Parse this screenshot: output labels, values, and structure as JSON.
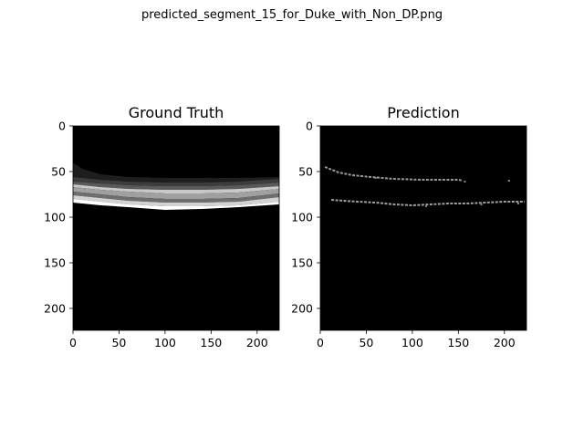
{
  "figure": {
    "suptitle": "predicted_segment_15_for_Duke_with_Non_DP.png"
  },
  "chart_data": [
    {
      "type": "heatmap",
      "title": "Ground Truth",
      "xlabel": "",
      "ylabel": "",
      "xlim": [
        0,
        224
      ],
      "ylim": [
        224,
        0
      ],
      "xticks": [
        0,
        50,
        100,
        150,
        200
      ],
      "yticks": [
        0,
        50,
        100,
        150,
        200
      ],
      "grid": false,
      "colormap": "gray",
      "background_color": "#000000",
      "bands": [
        {
          "shade": "#1e1e1e",
          "top": [
            [
              0,
              40
            ],
            [
              10,
              47
            ],
            [
              30,
              53
            ],
            [
              60,
              56
            ],
            [
              100,
              57
            ],
            [
              140,
              57
            ],
            [
              180,
              57
            ],
            [
              224,
              56
            ]
          ],
          "bottom": [
            [
              0,
              56
            ],
            [
              30,
              59
            ],
            [
              60,
              61
            ],
            [
              100,
              62
            ],
            [
              140,
              62
            ],
            [
              180,
              61
            ],
            [
              224,
              58
            ]
          ]
        },
        {
          "shade": "#3c3c3c",
          "top": [
            [
              0,
              56
            ],
            [
              30,
              59
            ],
            [
              60,
              61
            ],
            [
              100,
              62
            ],
            [
              140,
              62
            ],
            [
              180,
              61
            ],
            [
              224,
              58
            ]
          ],
          "bottom": [
            [
              0,
              61
            ],
            [
              30,
              63
            ],
            [
              60,
              65
            ],
            [
              100,
              66
            ],
            [
              140,
              66
            ],
            [
              180,
              65
            ],
            [
              224,
              62
            ]
          ]
        },
        {
          "shade": "#5a5a5a",
          "top": [
            [
              0,
              61
            ],
            [
              30,
              63
            ],
            [
              60,
              65
            ],
            [
              100,
              66
            ],
            [
              140,
              66
            ],
            [
              180,
              65
            ],
            [
              224,
              62
            ]
          ],
          "bottom": [
            [
              0,
              64
            ],
            [
              30,
              67
            ],
            [
              60,
              69
            ],
            [
              100,
              70
            ],
            [
              140,
              70
            ],
            [
              180,
              69
            ],
            [
              224,
              66
            ]
          ]
        },
        {
          "shade": "#c8c8c8",
          "top": [
            [
              0,
              64
            ],
            [
              30,
              67
            ],
            [
              60,
              69
            ],
            [
              100,
              70
            ],
            [
              140,
              70
            ],
            [
              180,
              69
            ],
            [
              224,
              66
            ]
          ],
          "bottom": [
            [
              0,
              67
            ],
            [
              30,
              70
            ],
            [
              60,
              72
            ],
            [
              100,
              74
            ],
            [
              140,
              74
            ],
            [
              180,
              73
            ],
            [
              224,
              69
            ]
          ]
        },
        {
          "shade": "#a0a0a0",
          "top": [
            [
              0,
              67
            ],
            [
              30,
              70
            ],
            [
              60,
              72
            ],
            [
              100,
              74
            ],
            [
              140,
              74
            ],
            [
              180,
              73
            ],
            [
              224,
              69
            ]
          ],
          "bottom": [
            [
              0,
              72
            ],
            [
              30,
              75
            ],
            [
              60,
              78
            ],
            [
              100,
              80
            ],
            [
              140,
              80
            ],
            [
              180,
              79
            ],
            [
              224,
              74
            ]
          ]
        },
        {
          "shade": "#6e6e6e",
          "top": [
            [
              0,
              72
            ],
            [
              30,
              75
            ],
            [
              60,
              78
            ],
            [
              100,
              80
            ],
            [
              140,
              80
            ],
            [
              180,
              79
            ],
            [
              224,
              74
            ]
          ],
          "bottom": [
            [
              0,
              76
            ],
            [
              30,
              79
            ],
            [
              60,
              82
            ],
            [
              100,
              84
            ],
            [
              140,
              84
            ],
            [
              180,
              83
            ],
            [
              224,
              78
            ]
          ]
        },
        {
          "shade": "#d2d2d2",
          "top": [
            [
              0,
              76
            ],
            [
              30,
              79
            ],
            [
              60,
              82
            ],
            [
              100,
              84
            ],
            [
              140,
              84
            ],
            [
              180,
              83
            ],
            [
              224,
              78
            ]
          ],
          "bottom": [
            [
              0,
              80
            ],
            [
              30,
              83
            ],
            [
              60,
              86
            ],
            [
              100,
              88
            ],
            [
              140,
              88
            ],
            [
              180,
              87
            ],
            [
              224,
              83
            ]
          ]
        },
        {
          "shade": "#ffffff",
          "top": [
            [
              0,
              80
            ],
            [
              30,
              83
            ],
            [
              60,
              86
            ],
            [
              100,
              88
            ],
            [
              140,
              88
            ],
            [
              180,
              87
            ],
            [
              224,
              83
            ]
          ],
          "bottom": [
            [
              0,
              84
            ],
            [
              30,
              87
            ],
            [
              60,
              89
            ],
            [
              100,
              92
            ],
            [
              140,
              91
            ],
            [
              180,
              89
            ],
            [
              224,
              86
            ]
          ]
        }
      ]
    },
    {
      "type": "heatmap",
      "title": "Prediction",
      "xlabel": "",
      "ylabel": "",
      "xlim": [
        0,
        224
      ],
      "ylim": [
        224,
        0
      ],
      "xticks": [
        0,
        50,
        100,
        150,
        200
      ],
      "yticks": [
        0,
        50,
        100,
        150,
        200
      ],
      "grid": false,
      "colormap": "gray",
      "background_color": "#000000",
      "traces": [
        {
          "shade": "#9a9a9a",
          "points": [
            [
              5,
              45
            ],
            [
              10,
              47
            ],
            [
              20,
              51
            ],
            [
              35,
              54
            ],
            [
              55,
              56
            ],
            [
              80,
              58
            ],
            [
              110,
              59
            ],
            [
              135,
              59
            ],
            [
              150,
              59
            ],
            [
              155,
              60
            ]
          ]
        },
        {
          "shade": "#a0a0a0",
          "points": [
            [
              12,
              81
            ],
            [
              25,
              82
            ],
            [
              40,
              83
            ],
            [
              60,
              84
            ],
            [
              80,
              86
            ],
            [
              100,
              87
            ],
            [
              120,
              86
            ],
            [
              140,
              85
            ],
            [
              160,
              85
            ],
            [
              180,
              84
            ],
            [
              200,
              83
            ],
            [
              222,
              83
            ]
          ]
        }
      ],
      "specks": [
        [
          205,
          60
        ],
        [
          157,
          61
        ],
        [
          60,
          57
        ],
        [
          115,
          88
        ],
        [
          175,
          86
        ],
        [
          215,
          85
        ]
      ]
    }
  ]
}
